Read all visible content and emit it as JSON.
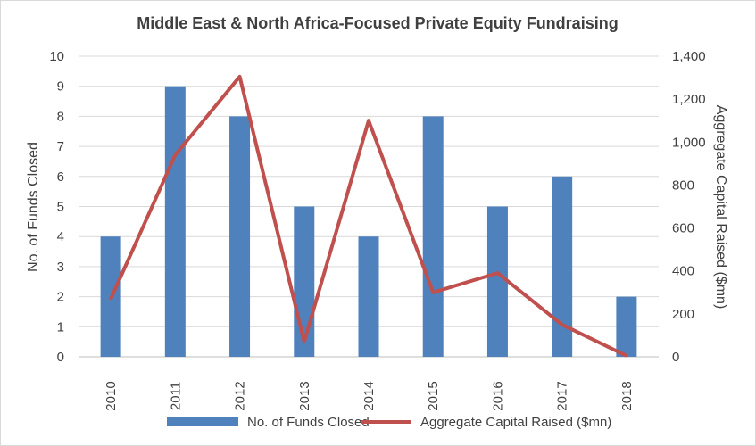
{
  "chart_data": {
    "type": "bar+line",
    "title": "Middle East & North Africa-Focused Private Equity Fundraising",
    "categories": [
      "2010",
      "2011",
      "2012",
      "2013",
      "2014",
      "2015",
      "2016",
      "2017",
      "2018"
    ],
    "series": [
      {
        "name": "No. of Funds Closed",
        "type": "bar",
        "axis": "left",
        "color": "#4f81bd",
        "values": [
          4,
          9,
          8,
          5,
          4,
          8,
          5,
          6,
          2
        ]
      },
      {
        "name": "Aggregate Capital Raised ($mn)",
        "type": "line",
        "axis": "right",
        "color": "#c0504d",
        "values": [
          270,
          940,
          1305,
          70,
          1100,
          300,
          390,
          150,
          5
        ]
      }
    ],
    "ylabel_left": "No. of Funds Closed",
    "ylabel_right": "Aggregate Capital Raised ($mn)",
    "ylim_left": [
      0,
      10
    ],
    "ylim_right": [
      0,
      1400
    ],
    "yticks_left": [
      "0",
      "1",
      "2",
      "3",
      "4",
      "5",
      "6",
      "7",
      "8",
      "9",
      "10"
    ],
    "yticks_right": [
      "0",
      "200",
      "400",
      "600",
      "800",
      "1,000",
      "1,200",
      "1,400"
    ],
    "grid": true,
    "legend_position": "bottom"
  }
}
